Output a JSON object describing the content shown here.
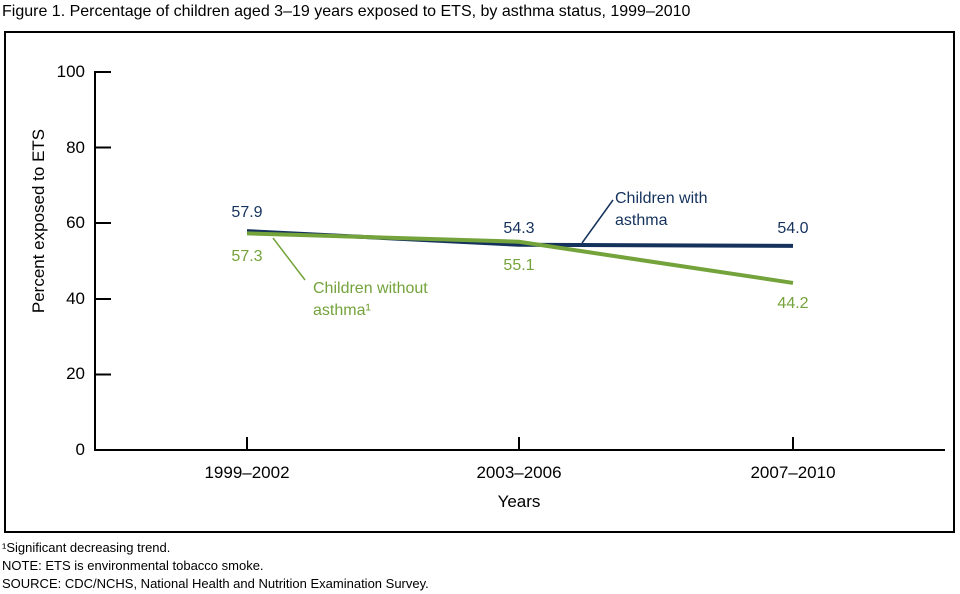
{
  "figure": {
    "title": "Figure 1. Percentage of children aged 3–19 years exposed to ETS, by asthma status, 1999–2010"
  },
  "chart_data": {
    "type": "line",
    "title": "Percentage of children aged 3–19 years exposed to ETS, by asthma status, 1999–2010",
    "categories": [
      "1999–2002",
      "2003–2006",
      "2007–2010"
    ],
    "series": [
      {
        "name": "Children with asthma",
        "color": "#14325c",
        "values": [
          57.9,
          54.3,
          54.0
        ],
        "labels": [
          "57.9",
          "54.3",
          "54.0"
        ]
      },
      {
        "name": "Children without asthma¹",
        "color": "#74a33c",
        "values": [
          57.3,
          55.1,
          44.2
        ],
        "labels": [
          "57.3",
          "55.1",
          "44.2"
        ]
      }
    ],
    "xlabel": "Years",
    "ylabel": "Percent exposed to ETS",
    "ylim": [
      0,
      100
    ],
    "yticks": [
      0,
      20,
      40,
      60,
      80,
      100
    ],
    "grid": false,
    "legend_position": "inline-annotations",
    "axis_color": "#000000"
  },
  "footnotes": [
    "¹Significant decreasing trend.",
    "NOTE: ETS is environmental tobacco smoke.",
    "SOURCE: CDC/NCHS, National Health and Nutrition Examination Survey."
  ]
}
